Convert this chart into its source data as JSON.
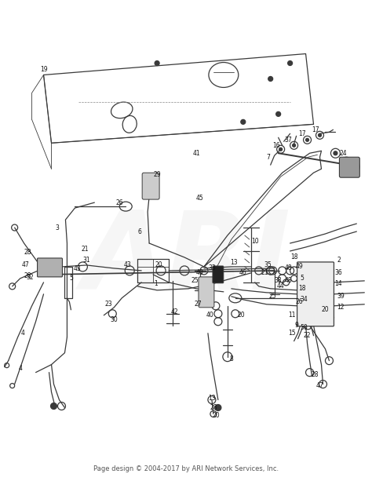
{
  "bg_color": "#ffffff",
  "fig_width": 4.74,
  "fig_height": 6.13,
  "dpi": 100,
  "watermark_text": "ARI",
  "watermark_alpha": 0.1,
  "watermark_fontsize": 100,
  "watermark_color": "#aaaaaa",
  "footer_text": "Page design © 2004-2017 by ARI Network Services, Inc.",
  "footer_fontsize": 6.0,
  "footer_color": "#555555",
  "line_color": "#3a3a3a",
  "lw": 0.9,
  "tlw": 0.6,
  "label_fontsize": 5.5,
  "label_color": "#111111"
}
